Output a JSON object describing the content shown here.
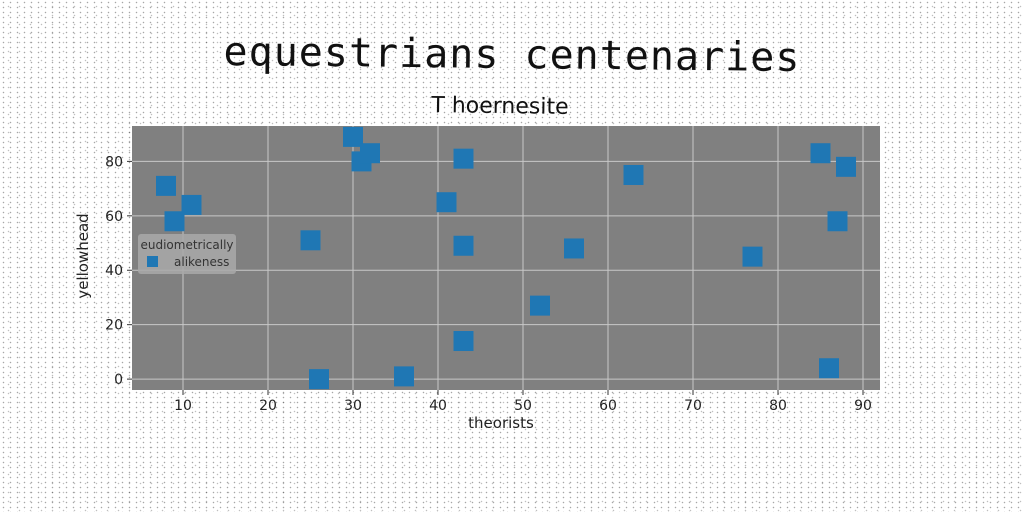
{
  "chart_data": {
    "type": "scatter",
    "title": "equestrians centenaries",
    "subtitle": "T hoernesite",
    "xlabel": "theorists",
    "ylabel": "yellowhead",
    "xlim": [
      4,
      92
    ],
    "ylim": [
      -4,
      93
    ],
    "xticks": [
      10,
      20,
      30,
      40,
      50,
      60,
      70,
      80,
      90
    ],
    "yticks": [
      0,
      20,
      40,
      60,
      80
    ],
    "grid": true,
    "legend": {
      "title": "eudiometrically",
      "position": "center-left"
    },
    "series": [
      {
        "name": "alikeness",
        "color": "#1f77b4",
        "marker": "square",
        "points": [
          [
            8,
            71
          ],
          [
            9,
            58
          ],
          [
            11,
            64
          ],
          [
            25,
            51
          ],
          [
            26,
            0
          ],
          [
            30,
            89
          ],
          [
            31,
            80
          ],
          [
            32,
            83
          ],
          [
            36,
            1
          ],
          [
            41,
            65
          ],
          [
            43,
            49
          ],
          [
            43,
            14
          ],
          [
            43,
            81
          ],
          [
            52,
            27
          ],
          [
            56,
            48
          ],
          [
            63,
            75
          ],
          [
            77,
            45
          ],
          [
            85,
            83
          ],
          [
            86,
            4
          ],
          [
            87,
            58
          ],
          [
            88,
            78
          ]
        ]
      }
    ]
  }
}
